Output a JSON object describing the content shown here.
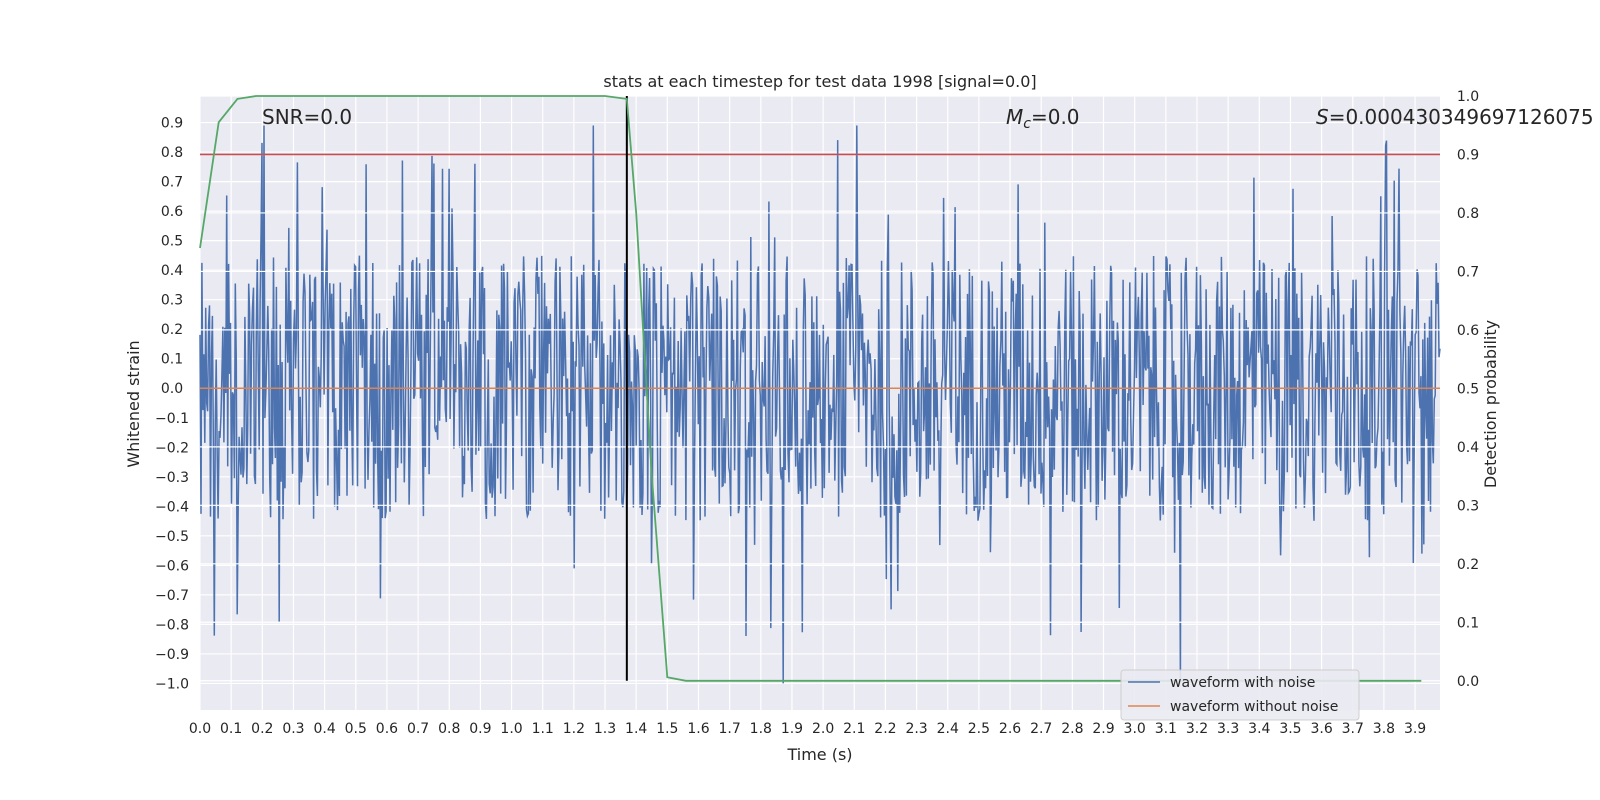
{
  "chart_data": {
    "type": "line",
    "title": "stats at each timestep for test data 1998 [signal=0.0]",
    "xlabel": "Time (s)",
    "ylabel": "Whitened strain",
    "y2label": "Detection probability",
    "xlim": [
      0.0,
      3.98
    ],
    "ylim": [
      -1.09,
      0.99
    ],
    "y2lim": [
      -0.05,
      1.0
    ],
    "x_ticks": [
      "0.0",
      "0.1",
      "0.2",
      "0.3",
      "0.4",
      "0.5",
      "0.6",
      "0.7",
      "0.8",
      "0.9",
      "1.0",
      "1.1",
      "1.2",
      "1.3",
      "1.4",
      "1.5",
      "1.6",
      "1.7",
      "1.8",
      "1.9",
      "2.0",
      "2.1",
      "2.2",
      "2.3",
      "2.4",
      "2.5",
      "2.6",
      "2.7",
      "2.8",
      "2.9",
      "3.0",
      "3.1",
      "3.2",
      "3.3",
      "3.4",
      "3.5",
      "3.6",
      "3.7",
      "3.8",
      "3.9"
    ],
    "y_ticks": [
      "0.9",
      "0.8",
      "0.7",
      "0.6",
      "0.5",
      "0.4",
      "0.3",
      "0.2",
      "0.1",
      "0.0",
      "−0.1",
      "−0.2",
      "−0.3",
      "−0.4",
      "−0.5",
      "−0.6",
      "−0.7",
      "−0.8",
      "−0.9",
      "−1.0"
    ],
    "y2_ticks": [
      "1.0",
      "0.9",
      "0.8",
      "0.7",
      "0.6",
      "0.5",
      "0.4",
      "0.3",
      "0.2",
      "0.1",
      "0.0"
    ],
    "grid": true,
    "legend_position": "bottom-right",
    "annotations": {
      "snr_text": "SNR=0.0",
      "mc_symbol": "M",
      "mc_sub": "c",
      "mc_value": "=0.0",
      "s_symbol": "S",
      "s_value": "=0.00043034969712607​5"
    },
    "series": [
      {
        "name": "waveform with noise",
        "color": "#4c72b0",
        "description_of_values": "noise samples, roughly uniform between about -0.5 and 0.5 with spikes reaching 0.89 and -1.0",
        "envelope": {
          "typical_max": 0.45,
          "typical_min": -0.45,
          "max": 0.89,
          "min": -1.0
        }
      },
      {
        "name": "waveform without noise",
        "color": "#dd8452",
        "x": [
          0.0,
          3.98
        ],
        "y": [
          0.0,
          0.0
        ]
      },
      {
        "axis": "right",
        "color": "#55a868",
        "x": [
          0.0,
          0.06,
          0.12,
          0.18,
          0.24,
          0.3,
          0.6,
          0.9,
          1.2,
          1.3,
          1.37,
          1.4,
          1.45,
          1.5,
          1.56,
          1.62,
          3.92
        ],
        "y": [
          0.74,
          0.955,
          0.995,
          1.0,
          1.0,
          1.0,
          1.0,
          1.0,
          1.0,
          1.0,
          0.995,
          0.8,
          0.35,
          0.006,
          0.0,
          0.0,
          0.0
        ]
      }
    ],
    "threshold_line": {
      "axis": "right",
      "y": 0.9,
      "color": "#c44e52"
    },
    "vertical_line": {
      "x": 1.37,
      "color": "#000000"
    }
  }
}
